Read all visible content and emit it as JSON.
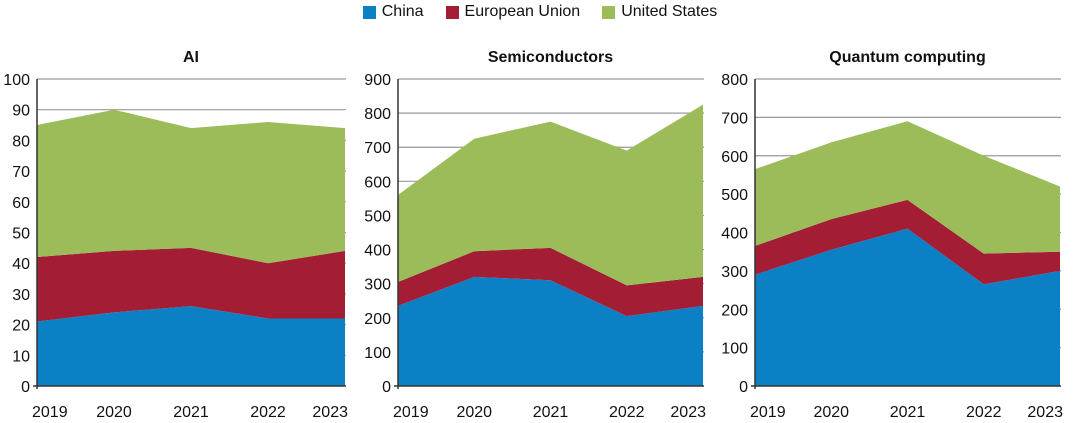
{
  "legend": {
    "items": [
      {
        "label": "China",
        "color": "#0b80c5"
      },
      {
        "label": "European Union",
        "color": "#a31d34"
      },
      {
        "label": "United States",
        "color": "#9bbc59"
      }
    ]
  },
  "chart_data": [
    {
      "type": "area",
      "stacked": true,
      "title": "AI",
      "x": [
        "2019",
        "2020",
        "2021",
        "2022",
        "2023"
      ],
      "ylim": [
        0,
        100
      ],
      "yticks": [
        0,
        10,
        20,
        30,
        40,
        50,
        60,
        70,
        80,
        90,
        100
      ],
      "series": [
        {
          "name": "China",
          "values": [
            21,
            24,
            26,
            22,
            22
          ]
        },
        {
          "name": "European Union",
          "values": [
            21,
            20,
            19,
            18,
            22
          ]
        },
        {
          "name": "United States",
          "values": [
            43,
            46,
            39,
            46,
            40
          ]
        }
      ]
    },
    {
      "type": "area",
      "stacked": true,
      "title": "Semiconductors",
      "x": [
        "2019",
        "2020",
        "2021",
        "2022",
        "2023"
      ],
      "ylim": [
        0,
        900
      ],
      "yticks": [
        0,
        100,
        200,
        300,
        400,
        500,
        600,
        700,
        800,
        900
      ],
      "series": [
        {
          "name": "China",
          "values": [
            235,
            320,
            310,
            205,
            235
          ]
        },
        {
          "name": "European Union",
          "values": [
            70,
            75,
            95,
            90,
            85
          ]
        },
        {
          "name": "United States",
          "values": [
            255,
            330,
            370,
            395,
            505
          ]
        }
      ]
    },
    {
      "type": "area",
      "stacked": true,
      "title": "Quantum computing",
      "x": [
        "2019",
        "2020",
        "2021",
        "2022",
        "2023"
      ],
      "ylim": [
        0,
        800
      ],
      "yticks": [
        0,
        100,
        200,
        300,
        400,
        500,
        600,
        700,
        800
      ],
      "series": [
        {
          "name": "China",
          "values": [
            290,
            355,
            410,
            265,
            300
          ]
        },
        {
          "name": "European Union",
          "values": [
            75,
            80,
            75,
            80,
            50
          ]
        },
        {
          "name": "United States",
          "values": [
            200,
            200,
            205,
            255,
            170
          ]
        }
      ]
    }
  ]
}
